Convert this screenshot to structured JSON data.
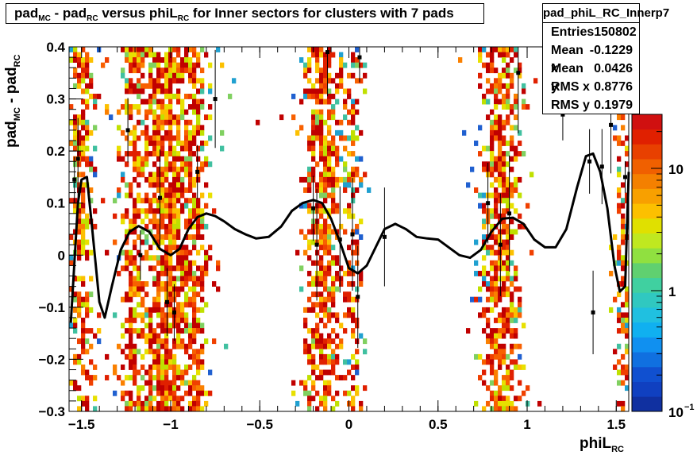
{
  "title": {
    "main": "pad",
    "sub1": "MC",
    "mid": " - pad",
    "sub2": "RC",
    "rest": " versus phiL",
    "sub3": "RC",
    "tail": " for Inner sectors for clusters with 7 pads"
  },
  "stats": {
    "name": "pad_phiL_RC_Innerp7",
    "rows": [
      {
        "label": "Entries",
        "value": "150802"
      },
      {
        "label": "Mean x",
        "value": "-0.1229"
      },
      {
        "label": "Mean y",
        "value": "0.0426"
      },
      {
        "label": "RMS x",
        "value": "0.8776"
      },
      {
        "label": "RMS y",
        "value": "0.1979"
      }
    ]
  },
  "axes": {
    "ylabel": {
      "main": "pad",
      "sub1": "MC",
      "mid": " - pad",
      "sub2": "RC"
    },
    "xlabel": {
      "main": "phiL",
      "sub": "RC"
    },
    "xticks": [
      "−1.5",
      "−1",
      "−0.5",
      "0",
      "0.5",
      "1",
      "1.5"
    ],
    "yticks": [
      "−0.3",
      "−0.2",
      "−0.1",
      "0",
      "0.1",
      "0.2",
      "0.3",
      "0.4"
    ],
    "zticks": [
      "10",
      "1",
      "10"
    ],
    "zticks_exp": [
      "",
      "",
      "−1"
    ]
  },
  "chart_data": {
    "type": "heatmap",
    "x_range": [
      -1.57,
      1.57
    ],
    "y_range": [
      -0.3,
      0.4
    ],
    "z_scale": "log",
    "z_range": [
      0.1,
      30
    ],
    "density_bands_x": [
      {
        "center": -1.5,
        "width": 0.06,
        "intensity": 0.9
      },
      {
        "center": -1.22,
        "width": 0.06,
        "intensity": 0.7
      },
      {
        "center": -1.02,
        "width": 0.16,
        "intensity": 1.0
      },
      {
        "center": -0.85,
        "width": 0.05,
        "intensity": 0.6
      },
      {
        "center": -0.15,
        "width": 0.1,
        "intensity": 0.95
      },
      {
        "center": 0.02,
        "width": 0.05,
        "intensity": 0.5
      },
      {
        "center": 0.85,
        "width": 0.1,
        "intensity": 1.0
      },
      {
        "center": 1.53,
        "width": 0.04,
        "intensity": 0.7
      }
    ],
    "profile_curve": {
      "x": [
        -1.56,
        -1.52,
        -1.5,
        -1.47,
        -1.44,
        -1.4,
        -1.37,
        -1.33,
        -1.28,
        -1.23,
        -1.18,
        -1.12,
        -1.06,
        -1.0,
        -0.95,
        -0.9,
        -0.85,
        -0.8,
        -0.75,
        -0.7,
        -0.64,
        -0.58,
        -0.52,
        -0.45,
        -0.38,
        -0.32,
        -0.26,
        -0.2,
        -0.15,
        -0.1,
        -0.05,
        0.0,
        0.05,
        0.1,
        0.15,
        0.2,
        0.26,
        0.32,
        0.38,
        0.44,
        0.5,
        0.56,
        0.62,
        0.68,
        0.74,
        0.8,
        0.86,
        0.92,
        0.98,
        1.04,
        1.1,
        1.16,
        1.22,
        1.28,
        1.33,
        1.37,
        1.41,
        1.45,
        1.49,
        1.52,
        1.55,
        1.57
      ],
      "y": [
        -0.13,
        0.1,
        0.145,
        0.15,
        0.05,
        -0.09,
        -0.12,
        -0.06,
        0.01,
        0.045,
        0.056,
        0.045,
        0.012,
        0.0,
        0.012,
        0.05,
        0.073,
        0.08,
        0.075,
        0.065,
        0.05,
        0.04,
        0.032,
        0.035,
        0.055,
        0.085,
        0.1,
        0.106,
        0.1,
        0.07,
        0.025,
        -0.025,
        -0.035,
        -0.02,
        0.015,
        0.05,
        0.06,
        0.05,
        0.035,
        0.032,
        0.03,
        0.015,
        0.0,
        -0.005,
        0.01,
        0.045,
        0.07,
        0.072,
        0.06,
        0.03,
        0.015,
        0.015,
        0.05,
        0.13,
        0.19,
        0.195,
        0.16,
        0.09,
        -0.02,
        -0.07,
        -0.06,
        0.16
      ]
    },
    "profile_points": [
      {
        "x": -1.54,
        "y": 0.145
      },
      {
        "x": -1.52,
        "y": 0.185
      },
      {
        "x": -1.24,
        "y": 0.24
      },
      {
        "x": -1.17,
        "y": 0.0
      },
      {
        "x": -1.06,
        "y": 0.11
      },
      {
        "x": -1.02,
        "y": -0.09
      },
      {
        "x": -0.98,
        "y": -0.11
      },
      {
        "x": -0.85,
        "y": 0.16
      },
      {
        "x": -0.75,
        "y": 0.3
      },
      {
        "x": -0.2,
        "y": 0.09
      },
      {
        "x": -0.18,
        "y": 0.02
      },
      {
        "x": -0.12,
        "y": 0.39
      },
      {
        "x": -0.05,
        "y": 0.03
      },
      {
        "x": 0.06,
        "y": 0.38
      },
      {
        "x": 0.02,
        "y": 0.04
      },
      {
        "x": 0.05,
        "y": -0.08
      },
      {
        "x": 0.2,
        "y": 0.035
      },
      {
        "x": 0.78,
        "y": 0.1
      },
      {
        "x": 0.85,
        "y": 0.02
      },
      {
        "x": 0.9,
        "y": 0.08
      },
      {
        "x": 0.95,
        "y": 0.35
      },
      {
        "x": 1.2,
        "y": 0.27
      },
      {
        "x": 1.35,
        "y": 0.18
      },
      {
        "x": 1.42,
        "y": 0.17
      },
      {
        "x": 1.47,
        "y": 0.25
      },
      {
        "x": 1.37,
        "y": -0.11
      },
      {
        "x": 1.55,
        "y": 0.15
      }
    ]
  }
}
